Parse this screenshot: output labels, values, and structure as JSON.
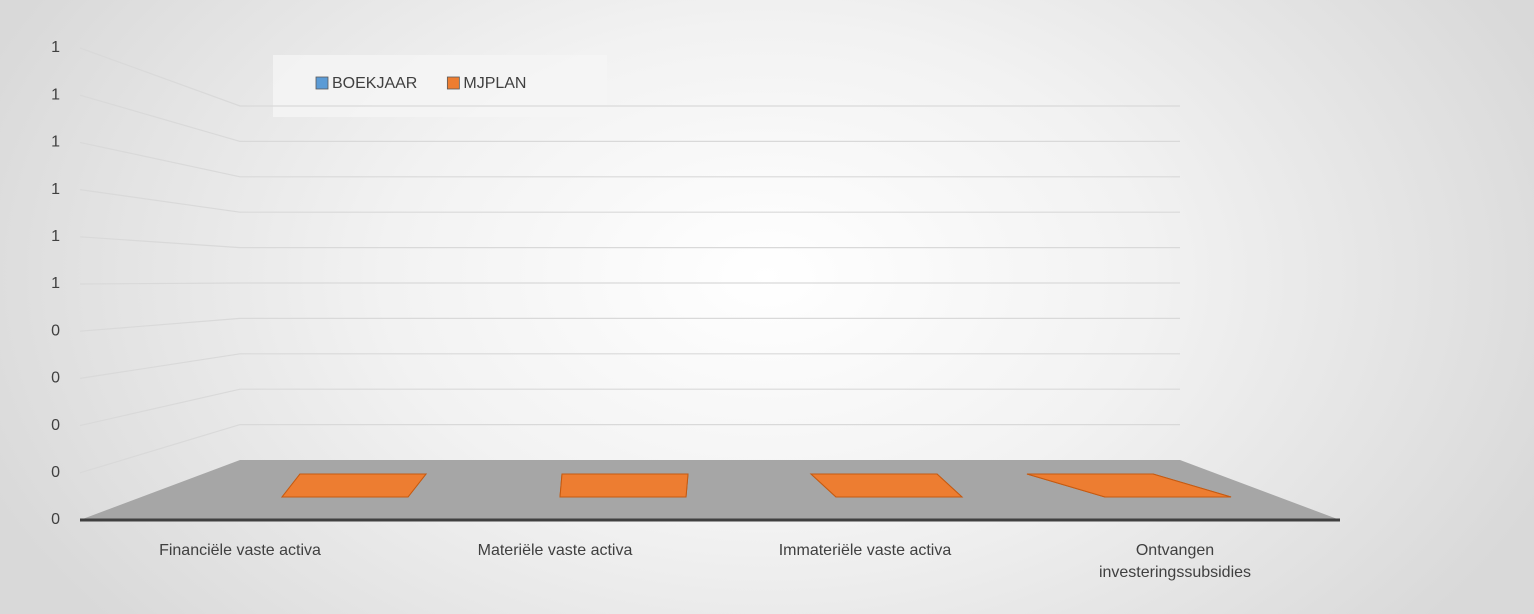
{
  "chart_data": {
    "type": "bar3d",
    "categories": [
      "Financiële vaste activa",
      "Materiële vaste activa",
      "Immateriële vaste activa",
      "Ontvangen investeringssubsidies"
    ],
    "series": [
      {
        "name": "BOEKJAAR",
        "color": "#5b9bd5",
        "values": [
          0,
          0,
          0,
          0
        ]
      },
      {
        "name": "MJPLAN",
        "color": "#ed7d31",
        "values": [
          0,
          0,
          0,
          0
        ]
      }
    ],
    "ylim": [
      0,
      1
    ],
    "yticks": [
      0,
      {
        "value": 0.1,
        "label": "0"
      },
      {
        "value": 0.2,
        "label": "0"
      },
      {
        "value": 0.3,
        "label": "0"
      },
      {
        "value": 0.4,
        "label": "0"
      },
      {
        "value": 0.5,
        "label": "1"
      },
      {
        "value": 0.6,
        "label": "1"
      },
      {
        "value": 0.7,
        "label": "1"
      },
      {
        "value": 0.8,
        "label": "1"
      },
      {
        "value": 0.9,
        "label": "1"
      },
      1
    ],
    "grid": true,
    "legend": "top-left"
  }
}
